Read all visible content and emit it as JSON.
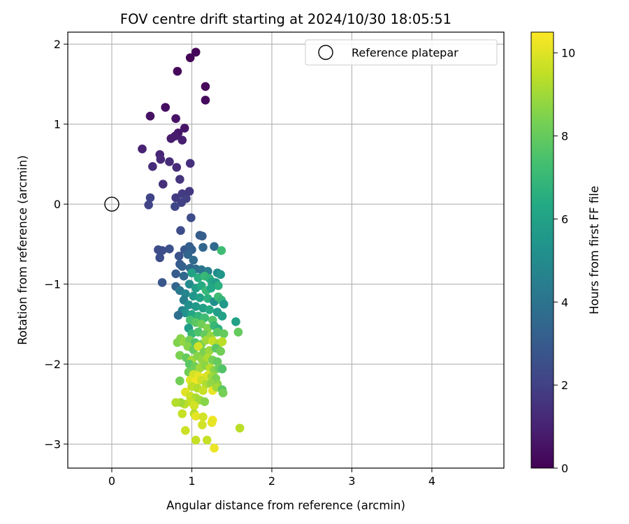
{
  "chart_data": {
    "type": "scatter",
    "title": "FOV centre drift starting at 2024/10/30 18:05:51",
    "xlabel": "Angular distance from reference (arcmin)",
    "ylabel": "Rotation from reference (arcmin)",
    "xlim": [
      -0.55,
      4.9
    ],
    "ylim": [
      -3.3,
      2.15
    ],
    "x_ticks": [
      "0",
      "1",
      "2",
      "3",
      "4"
    ],
    "y_ticks": [
      "2",
      "1",
      "0",
      "−1",
      "−2",
      "−3"
    ],
    "grid": true,
    "legend": {
      "placement": "top-right",
      "label": "Reference platepar"
    },
    "reference_point": {
      "x": 0,
      "y": 0
    },
    "colorbar": {
      "label": "Hours from first FF file",
      "range": [
        0,
        10.5
      ],
      "ticks": [
        "0",
        "2",
        "4",
        "6",
        "8",
        "10"
      ],
      "colormap": "viridis"
    },
    "points": [
      [
        0.98,
        1.83,
        0.1
      ],
      [
        1.05,
        1.9,
        0.1
      ],
      [
        0.82,
        1.66,
        0.2
      ],
      [
        1.17,
        1.47,
        0.2
      ],
      [
        1.17,
        1.3,
        0.3
      ],
      [
        0.48,
        1.1,
        0.5
      ],
      [
        0.67,
        1.21,
        0.4
      ],
      [
        0.8,
        1.07,
        0.5
      ],
      [
        0.91,
        0.95,
        0.6
      ],
      [
        0.83,
        0.89,
        0.7
      ],
      [
        0.79,
        0.85,
        0.8
      ],
      [
        0.74,
        0.82,
        0.8
      ],
      [
        0.88,
        0.8,
        0.9
      ],
      [
        0.38,
        0.69,
        1.0
      ],
      [
        0.6,
        0.62,
        1.1
      ],
      [
        0.61,
        0.56,
        1.2
      ],
      [
        0.51,
        0.47,
        1.3
      ],
      [
        0.72,
        0.53,
        1.3
      ],
      [
        0.81,
        0.46,
        1.3
      ],
      [
        0.98,
        0.51,
        1.4
      ],
      [
        0.64,
        0.25,
        1.4
      ],
      [
        0.85,
        0.31,
        1.6
      ],
      [
        0.97,
        0.16,
        1.7
      ],
      [
        0.88,
        0.13,
        1.8
      ],
      [
        0.8,
        0.08,
        1.8
      ],
      [
        0.93,
        0.07,
        2.0
      ],
      [
        0.87,
        0.02,
        2.0
      ],
      [
        0.48,
        0.08,
        2.1
      ],
      [
        0.46,
        -0.01,
        2.1
      ],
      [
        0.79,
        -0.03,
        2.2
      ],
      [
        0.99,
        -0.17,
        2.4
      ],
      [
        0.86,
        -0.33,
        2.4
      ],
      [
        1.1,
        -0.39,
        3.0
      ],
      [
        1.13,
        -0.4,
        3.1
      ],
      [
        0.58,
        -0.57,
        2.4
      ],
      [
        0.63,
        -0.58,
        2.5
      ],
      [
        0.72,
        -0.56,
        2.6
      ],
      [
        0.6,
        -0.67,
        2.5
      ],
      [
        0.84,
        -0.65,
        2.7
      ],
      [
        0.91,
        -0.57,
        2.9
      ],
      [
        0.97,
        -0.53,
        3.1
      ],
      [
        1.0,
        -0.57,
        3.2
      ],
      [
        1.14,
        -0.54,
        3.4
      ],
      [
        1.28,
        -0.53,
        3.6
      ],
      [
        1.37,
        -0.58,
        7.2
      ],
      [
        0.95,
        -0.63,
        3.4
      ],
      [
        1.02,
        -0.7,
        3.6
      ],
      [
        0.85,
        -0.75,
        3.0
      ],
      [
        0.88,
        -0.78,
        3.2
      ],
      [
        0.98,
        -0.8,
        3.5
      ],
      [
        1.05,
        -0.81,
        3.7
      ],
      [
        1.12,
        -0.82,
        4.0
      ],
      [
        1.2,
        -0.84,
        4.5
      ],
      [
        1.32,
        -0.86,
        5.0
      ],
      [
        1.36,
        -0.88,
        5.5
      ],
      [
        0.8,
        -0.87,
        3.0
      ],
      [
        0.9,
        -0.9,
        3.5
      ],
      [
        1.0,
        -0.86,
        6.0
      ],
      [
        1.08,
        -0.92,
        6.5
      ],
      [
        1.16,
        -0.9,
        7.0
      ],
      [
        1.22,
        -0.93,
        6.8
      ],
      [
        1.25,
        -0.97,
        6.2
      ],
      [
        1.3,
        -0.98,
        5.8
      ],
      [
        1.33,
        -1.02,
        6.6
      ],
      [
        0.63,
        -0.98,
        2.8
      ],
      [
        0.8,
        -1.03,
        3.4
      ],
      [
        0.85,
        -1.08,
        4.2
      ],
      [
        0.97,
        -1.0,
        5.0
      ],
      [
        1.05,
        -1.05,
        5.8
      ],
      [
        1.12,
        -1.02,
        6.4
      ],
      [
        1.18,
        -1.08,
        7.0
      ],
      [
        1.24,
        -1.05,
        6.3
      ],
      [
        0.92,
        -1.12,
        4.8
      ],
      [
        1.02,
        -1.15,
        5.5
      ],
      [
        1.1,
        -1.17,
        6.0
      ],
      [
        1.2,
        -1.18,
        6.6
      ],
      [
        1.28,
        -1.22,
        5.2
      ],
      [
        1.33,
        -1.16,
        7.2
      ],
      [
        1.37,
        -1.2,
        6.9
      ],
      [
        1.4,
        -1.25,
        5.6
      ],
      [
        0.9,
        -1.2,
        4.5
      ],
      [
        0.96,
        -1.26,
        5.2
      ],
      [
        1.05,
        -1.28,
        5.6
      ],
      [
        1.14,
        -1.3,
        5.9
      ],
      [
        1.22,
        -1.32,
        6.4
      ],
      [
        0.88,
        -1.33,
        4.6
      ],
      [
        0.92,
        -1.36,
        5.4
      ],
      [
        0.83,
        -1.39,
        3.8
      ],
      [
        1.0,
        -1.38,
        6.2
      ],
      [
        1.08,
        -1.4,
        6.8
      ],
      [
        1.16,
        -1.42,
        7.2
      ],
      [
        1.26,
        -1.45,
        7.6
      ],
      [
        1.32,
        -1.35,
        5.8
      ],
      [
        1.38,
        -1.4,
        6.0
      ],
      [
        0.98,
        -1.45,
        7.4
      ],
      [
        1.05,
        -1.48,
        7.8
      ],
      [
        1.12,
        -1.5,
        8.2
      ],
      [
        1.2,
        -1.55,
        8.5
      ],
      [
        1.28,
        -1.52,
        7.0
      ],
      [
        1.33,
        -1.56,
        6.6
      ],
      [
        0.96,
        -1.55,
        5.8
      ],
      [
        1.0,
        -1.62,
        7.0
      ],
      [
        1.08,
        -1.6,
        7.5
      ],
      [
        1.16,
        -1.63,
        8.0
      ],
      [
        1.24,
        -1.65,
        8.8
      ],
      [
        1.32,
        -1.6,
        7.8
      ],
      [
        1.4,
        -1.62,
        8.0
      ],
      [
        1.55,
        -1.47,
        6.0
      ],
      [
        1.58,
        -1.6,
        8.0
      ],
      [
        0.86,
        -1.68,
        8.6
      ],
      [
        0.82,
        -1.73,
        8.5
      ],
      [
        0.9,
        -1.72,
        8.8
      ],
      [
        0.97,
        -1.7,
        8.2
      ],
      [
        1.04,
        -1.73,
        7.6
      ],
      [
        1.12,
        -1.75,
        8.4
      ],
      [
        1.18,
        -1.7,
        9.0
      ],
      [
        1.26,
        -1.71,
        9.6
      ],
      [
        1.34,
        -1.74,
        9.2
      ],
      [
        1.38,
        -1.72,
        9.4
      ],
      [
        0.95,
        -1.78,
        8.6
      ],
      [
        1.02,
        -1.82,
        8.0
      ],
      [
        1.08,
        -1.78,
        9.8
      ],
      [
        1.15,
        -1.85,
        8.4
      ],
      [
        1.22,
        -1.83,
        8.9
      ],
      [
        1.3,
        -1.8,
        7.8
      ],
      [
        1.36,
        -1.84,
        8.2
      ],
      [
        0.85,
        -1.89,
        8.4
      ],
      [
        0.93,
        -1.92,
        8.0
      ],
      [
        1.0,
        -1.95,
        9.0
      ],
      [
        1.07,
        -1.9,
        8.6
      ],
      [
        1.13,
        -1.95,
        8.8
      ],
      [
        1.2,
        -1.92,
        9.2
      ],
      [
        1.26,
        -1.95,
        8.3
      ],
      [
        1.32,
        -1.97,
        8.0
      ],
      [
        0.97,
        -2.0,
        7.8
      ],
      [
        1.04,
        -2.03,
        8.2
      ],
      [
        1.1,
        -2.05,
        9.0
      ],
      [
        1.17,
        -2.02,
        8.7
      ],
      [
        1.23,
        -2.05,
        9.4
      ],
      [
        1.28,
        -2.08,
        8.6
      ],
      [
        1.34,
        -2.05,
        8.1
      ],
      [
        1.38,
        -2.06,
        7.6
      ],
      [
        0.96,
        -2.1,
        8.2
      ],
      [
        1.02,
        -2.13,
        9.8
      ],
      [
        1.08,
        -2.15,
        10.1
      ],
      [
        1.14,
        -2.17,
        10.2
      ],
      [
        1.2,
        -2.14,
        9.9
      ],
      [
        1.25,
        -2.16,
        9.0
      ],
      [
        1.3,
        -2.18,
        8.4
      ],
      [
        0.98,
        -2.2,
        10.0
      ],
      [
        1.05,
        -2.22,
        10.3
      ],
      [
        1.12,
        -2.2,
        9.7
      ],
      [
        1.18,
        -2.25,
        9.2
      ],
      [
        1.24,
        -2.24,
        8.8
      ],
      [
        1.32,
        -2.25,
        8.6
      ],
      [
        0.85,
        -2.21,
        8.2
      ],
      [
        1.0,
        -2.28,
        9.5
      ],
      [
        1.07,
        -2.3,
        9.3
      ],
      [
        1.14,
        -2.33,
        9.6
      ],
      [
        1.26,
        -2.33,
        10.2
      ],
      [
        1.31,
        -2.29,
        9.0
      ],
      [
        1.38,
        -2.32,
        7.8
      ],
      [
        1.39,
        -2.36,
        8.3
      ],
      [
        0.92,
        -2.35,
        10.0
      ],
      [
        0.98,
        -2.4,
        9.7
      ],
      [
        1.05,
        -2.42,
        9.2
      ],
      [
        1.1,
        -2.45,
        9.0
      ],
      [
        1.16,
        -2.47,
        8.6
      ],
      [
        0.98,
        -2.47,
        9.6
      ],
      [
        0.91,
        -2.5,
        9.4
      ],
      [
        0.86,
        -2.48,
        9.0
      ],
      [
        0.8,
        -2.48,
        9.3
      ],
      [
        1.03,
        -2.52,
        9.8
      ],
      [
        0.88,
        -2.62,
        9.6
      ],
      [
        1.03,
        -2.62,
        9.3
      ],
      [
        1.05,
        -2.65,
        10.1
      ],
      [
        1.14,
        -2.66,
        9.8
      ],
      [
        1.26,
        -2.7,
        10.3
      ],
      [
        1.25,
        -2.73,
        10.1
      ],
      [
        1.13,
        -2.76,
        9.8
      ],
      [
        1.6,
        -2.8,
        9.4
      ],
      [
        0.92,
        -2.83,
        9.7
      ],
      [
        1.05,
        -2.95,
        9.6
      ],
      [
        1.19,
        -2.95,
        9.6
      ],
      [
        1.28,
        -3.05,
        10.2
      ]
    ]
  }
}
